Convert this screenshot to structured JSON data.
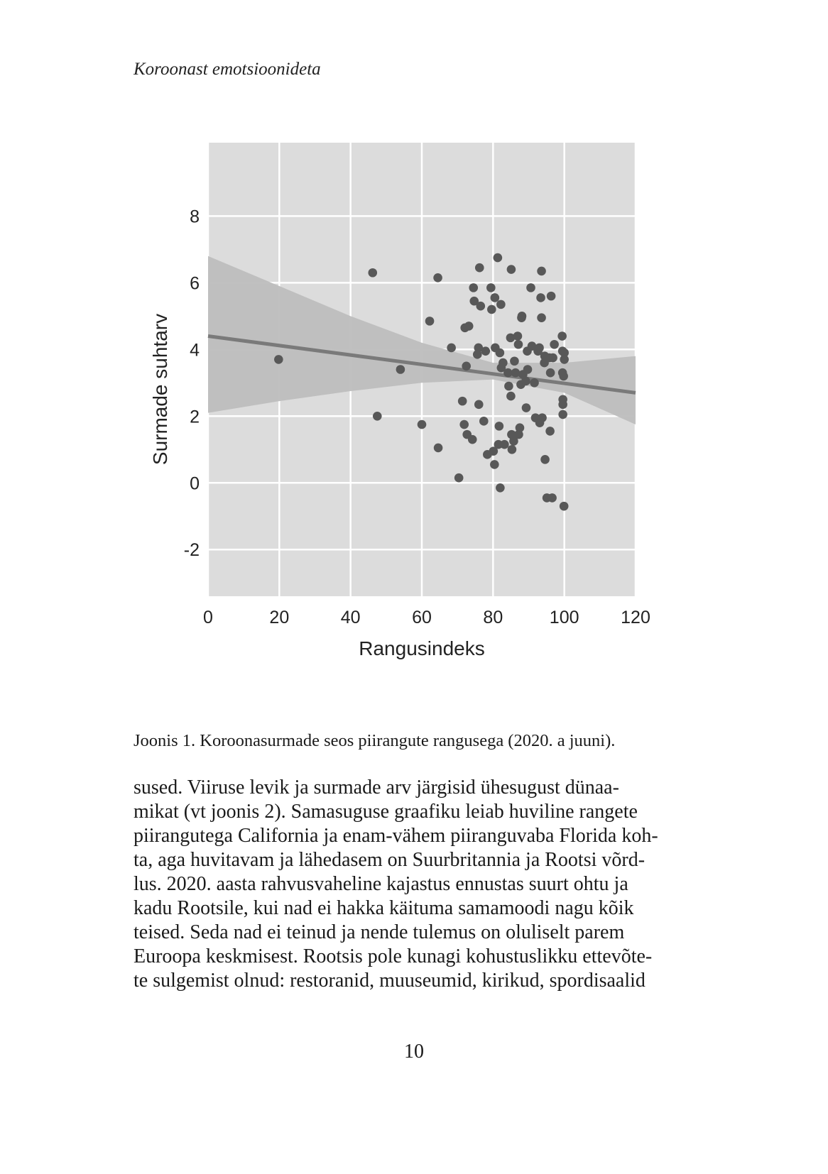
{
  "header": {
    "running_title": "Koroonast emotsioonideta"
  },
  "figure": {
    "caption": "Joonis 1. Koroonasurmade seos piirangute rangusega (2020. a juuni)."
  },
  "chart_data": {
    "type": "scatter",
    "xlabel": "Rangusindeks",
    "ylabel": "Surmade suhtarv",
    "xlim": [
      0,
      120
    ],
    "ylim": [
      -3.4,
      10.2
    ],
    "x_ticks": [
      0,
      20,
      40,
      60,
      80,
      100,
      120
    ],
    "y_ticks": [
      -2,
      0,
      2,
      4,
      6,
      8
    ],
    "grid": true,
    "background": "#dcdcdc",
    "point_color": "#585858",
    "trend": {
      "type": "linear",
      "x": [
        0,
        120
      ],
      "y": [
        4.4,
        2.7
      ],
      "color": "#7a7a7a"
    },
    "confidence_band": {
      "x": [
        0,
        20,
        40,
        60,
        80,
        100,
        120
      ],
      "upper": [
        6.8,
        5.9,
        5.0,
        4.2,
        3.6,
        3.6,
        3.8
      ],
      "lower": [
        2.1,
        2.45,
        2.75,
        3.0,
        3.1,
        2.7,
        1.75
      ],
      "color": "#bdbdbd"
    },
    "points": [
      [
        19.8,
        3.7
      ],
      [
        46.2,
        6.3
      ],
      [
        47.5,
        2.0
      ],
      [
        54.0,
        3.4
      ],
      [
        60.0,
        1.75
      ],
      [
        62.2,
        4.85
      ],
      [
        64.5,
        6.15
      ],
      [
        64.6,
        1.05
      ],
      [
        68.3,
        4.05
      ],
      [
        70.4,
        0.15
      ],
      [
        71.4,
        2.45
      ],
      [
        71.9,
        1.75
      ],
      [
        72.1,
        4.65
      ],
      [
        72.5,
        3.5
      ],
      [
        72.7,
        1.45
      ],
      [
        73.2,
        4.7
      ],
      [
        74.2,
        1.3
      ],
      [
        74.5,
        5.85
      ],
      [
        74.7,
        5.45
      ],
      [
        75.6,
        3.85
      ],
      [
        75.9,
        4.05
      ],
      [
        76.0,
        2.35
      ],
      [
        76.2,
        6.45
      ],
      [
        76.5,
        5.3
      ],
      [
        77.4,
        1.85
      ],
      [
        77.9,
        3.95
      ],
      [
        78.4,
        0.85
      ],
      [
        79.4,
        5.85
      ],
      [
        79.6,
        5.2
      ],
      [
        80.1,
        0.95
      ],
      [
        80.4,
        0.55
      ],
      [
        80.5,
        5.55
      ],
      [
        80.6,
        4.05
      ],
      [
        81.3,
        6.75
      ],
      [
        81.5,
        1.15
      ],
      [
        81.7,
        1.7
      ],
      [
        81.9,
        3.9
      ],
      [
        82.0,
        -0.15
      ],
      [
        82.2,
        5.35
      ],
      [
        82.3,
        3.45
      ],
      [
        82.8,
        3.6
      ],
      [
        83.2,
        1.15
      ],
      [
        84.2,
        3.3
      ],
      [
        84.4,
        2.9
      ],
      [
        84.9,
        4.35
      ],
      [
        85.0,
        2.6
      ],
      [
        85.1,
        6.4
      ],
      [
        85.2,
        1.45
      ],
      [
        85.3,
        1.0
      ],
      [
        85.8,
        1.25
      ],
      [
        86.0,
        3.65
      ],
      [
        86.3,
        3.3
      ],
      [
        86.9,
        4.4
      ],
      [
        87.1,
        4.15
      ],
      [
        87.2,
        1.45
      ],
      [
        87.5,
        1.65
      ],
      [
        87.8,
        2.95
      ],
      [
        88.0,
        4.95
      ],
      [
        88.1,
        5.0
      ],
      [
        88.4,
        3.25
      ],
      [
        89.2,
        3.05
      ],
      [
        89.3,
        2.25
      ],
      [
        89.6,
        3.95
      ],
      [
        89.7,
        3.4
      ],
      [
        90.6,
        5.85
      ],
      [
        90.9,
        4.1
      ],
      [
        91.6,
        3.0
      ],
      [
        91.9,
        1.95
      ],
      [
        92.6,
        3.95
      ],
      [
        93.0,
        4.05
      ],
      [
        93.1,
        1.8
      ],
      [
        93.4,
        5.55
      ],
      [
        93.6,
        6.35
      ],
      [
        93.6,
        4.95
      ],
      [
        93.8,
        1.95
      ],
      [
        94.4,
        3.6
      ],
      [
        94.5,
        3.8
      ],
      [
        94.6,
        0.7
      ],
      [
        95.1,
        -0.45
      ],
      [
        95.8,
        3.75
      ],
      [
        96.0,
        1.55
      ],
      [
        96.1,
        3.3
      ],
      [
        96.3,
        5.6
      ],
      [
        96.6,
        -0.45
      ],
      [
        96.8,
        3.75
      ],
      [
        97.2,
        4.15
      ],
      [
        99.4,
        4.4
      ],
      [
        99.5,
        3.95
      ],
      [
        99.5,
        3.3
      ],
      [
        99.6,
        2.5
      ],
      [
        99.6,
        2.35
      ],
      [
        99.6,
        2.05
      ],
      [
        99.8,
        3.2
      ],
      [
        99.9,
        -0.7
      ],
      [
        100.0,
        3.7
      ],
      [
        100.0,
        3.9
      ]
    ]
  },
  "body": {
    "lines": [
      "sused. Viiruse levik ja surmade arv järgisid ühesugust dünaa-",
      "mikat (vt joonis 2). Samasuguse graafiku leiab huviline rangete",
      "piirangutega California ja enam-vähem piiranguvaba Florida koh-",
      "ta, aga huvitavam ja lähedasem on Suurbritannia ja Rootsi võrd-",
      "lus. 2020. aasta rahvusvaheline kajastus ennustas suurt ohtu ja",
      "kadu Rootsile, kui nad ei hakka käituma samamoodi nagu kõik",
      "teised. Seda nad ei teinud ja nende tulemus on oluliselt parem",
      "Euroopa keskmisest. Rootsis pole kunagi kohustuslikku ettevõte-",
      "te sulgemist olnud: restoranid, muuseumid, kirikud, spordisaalid"
    ]
  },
  "footer": {
    "page_number": "10"
  }
}
